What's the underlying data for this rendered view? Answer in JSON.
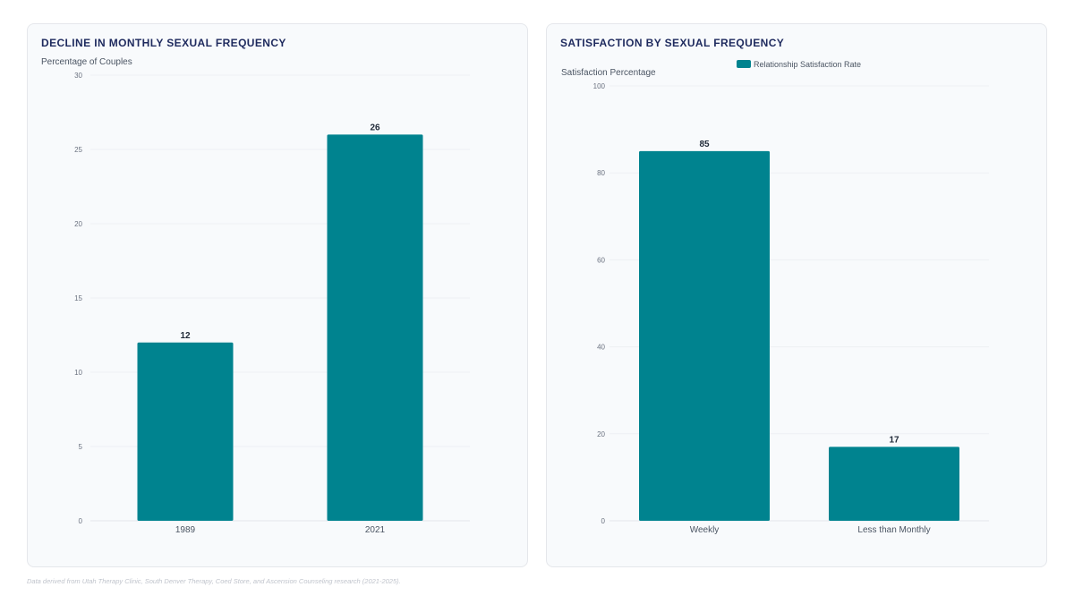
{
  "colors": {
    "bar": "#00838f",
    "grid": "#eef0f3",
    "axis": "#e5e7eb"
  },
  "footnote": "Data derived from Utah Therapy Clinic, South Denver Therapy, Coed Store, and Ascension Counseling research (2021-2025).",
  "chart_data": [
    {
      "type": "bar",
      "title": "DECLINE IN MONTHLY SEXUAL FREQUENCY",
      "ylabel": "Percentage of Couples",
      "xlabel": "",
      "categories": [
        "1989",
        "2021"
      ],
      "values": [
        12,
        26
      ],
      "value_labels": [
        "12",
        "26"
      ],
      "ylim": [
        0,
        30
      ],
      "yticks": [
        0,
        5,
        10,
        15,
        20,
        25,
        30
      ],
      "ytick_labels": [
        "0",
        "5",
        "10",
        "15",
        "20",
        "25",
        "30"
      ],
      "legend": null,
      "grid": true
    },
    {
      "type": "bar",
      "title": "SATISFACTION BY SEXUAL FREQUENCY",
      "ylabel": "Satisfaction Percentage",
      "xlabel": "",
      "categories": [
        "Weekly",
        "Less than Monthly"
      ],
      "series": [
        {
          "name": "Relationship Satisfaction Rate",
          "values": [
            85,
            17
          ]
        }
      ],
      "values": [
        85,
        17
      ],
      "value_labels": [
        "85",
        "17"
      ],
      "ylim": [
        0,
        100
      ],
      "yticks": [
        0,
        20,
        40,
        60,
        80,
        100
      ],
      "ytick_labels": [
        "0",
        "20",
        "40",
        "60",
        "80",
        "100"
      ],
      "legend": "top",
      "grid": true
    }
  ]
}
